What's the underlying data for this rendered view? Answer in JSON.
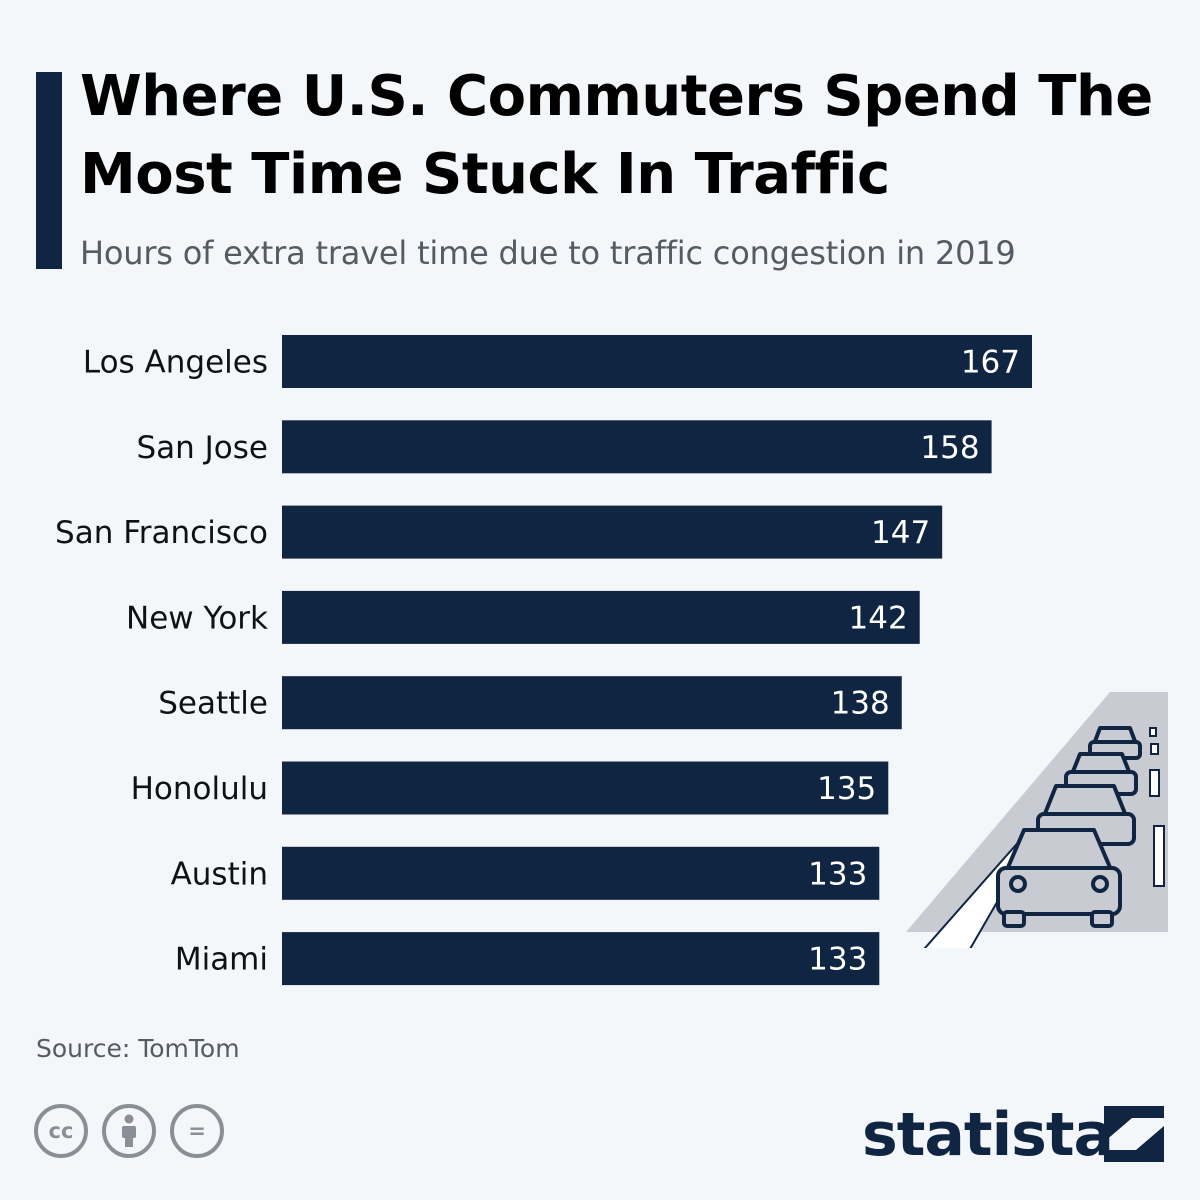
{
  "header": {
    "title": "Where U.S. Commuters Spend The Most Time Stuck In Traffic",
    "subtitle": "Hours of extra travel time due to traffic congestion in 2019"
  },
  "chart_data": {
    "type": "bar",
    "orientation": "horizontal",
    "categories": [
      "Los Angeles",
      "San Jose",
      "San Francisco",
      "New York",
      "Seattle",
      "Honolulu",
      "Austin",
      "Miami"
    ],
    "values": [
      167,
      158,
      147,
      142,
      138,
      135,
      133,
      133
    ],
    "bar_color": "#0f2542",
    "label_color": "#ffffff",
    "grid": false,
    "legend": "none"
  },
  "footer": {
    "source": "Source: TomTom",
    "license_icons": [
      "cc-icon",
      "attribution-icon",
      "no-derivatives-icon"
    ],
    "cc_text": "cc",
    "nd_text": "=",
    "brand": "statista"
  },
  "colors": {
    "background": "#f4f7fa",
    "accent": "#0f2542",
    "muted": "#555b63",
    "icon_gray": "#8a8f96"
  },
  "illustration": "traffic-jam-icon"
}
